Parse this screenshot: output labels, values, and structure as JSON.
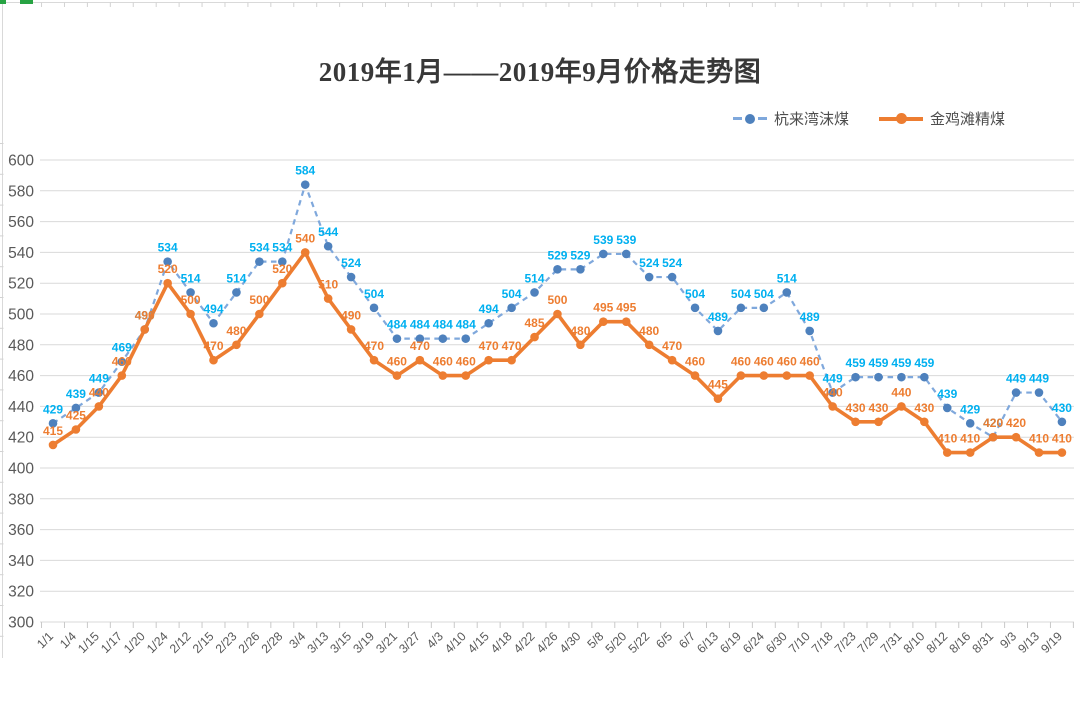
{
  "chart_data": {
    "type": "line",
    "title": "2019年1月——2019年9月价格走势图",
    "xlabel": "",
    "ylabel": "",
    "ylim": [
      300,
      600
    ],
    "ytick_step": 20,
    "grid": true,
    "legend_position": "top-right",
    "axis_label_color": "#595959",
    "grid_color": "#D9D9D9",
    "tick_color": "#C9C9C9",
    "frame_color": "#D9D9D9",
    "selection_accent_color": "#27A343",
    "categories": [
      "1/1",
      "1/4",
      "1/15",
      "1/17",
      "1/20",
      "1/24",
      "2/12",
      "2/15",
      "2/23",
      "2/26",
      "2/28",
      "3/4",
      "3/13",
      "3/15",
      "3/19",
      "3/21",
      "3/27",
      "4/3",
      "4/10",
      "4/15",
      "4/18",
      "4/22",
      "4/26",
      "4/30",
      "5/8",
      "5/20",
      "5/22",
      "6/5",
      "6/7",
      "6/13",
      "6/19",
      "6/24",
      "6/30",
      "7/10",
      "7/18",
      "7/23",
      "7/29",
      "7/31",
      "8/10",
      "8/12",
      "8/16",
      "8/31",
      "9/3",
      "9/13",
      "9/19"
    ],
    "series": [
      {
        "name": "杭来湾沫煤",
        "style": "dashed",
        "line_color": "#7FA8DC",
        "marker_color": "#4E81BD",
        "label_color": "#00B0F0",
        "values": [
          429,
          439,
          449,
          469,
          490,
          534,
          514,
          494,
          514,
          534,
          534,
          584,
          544,
          524,
          504,
          484,
          484,
          484,
          484,
          494,
          504,
          514,
          529,
          529,
          539,
          539,
          524,
          524,
          504,
          489,
          504,
          504,
          514,
          489,
          449,
          459,
          459,
          459,
          459,
          439,
          429,
          420,
          449,
          449,
          430
        ]
      },
      {
        "name": "金鸡滩精煤",
        "style": "solid",
        "line_color": "#ED7D31",
        "marker_color": "#ED7D31",
        "label_color": "#ED7D31",
        "values": [
          415,
          425,
          440,
          460,
          490,
          520,
          500,
          470,
          480,
          500,
          520,
          540,
          510,
          490,
          470,
          460,
          470,
          460,
          460,
          470,
          470,
          485,
          500,
          480,
          495,
          495,
          480,
          470,
          460,
          445,
          460,
          460,
          460,
          460,
          440,
          430,
          430,
          440,
          430,
          410,
          410,
          420,
          420,
          410,
          410
        ]
      }
    ]
  }
}
